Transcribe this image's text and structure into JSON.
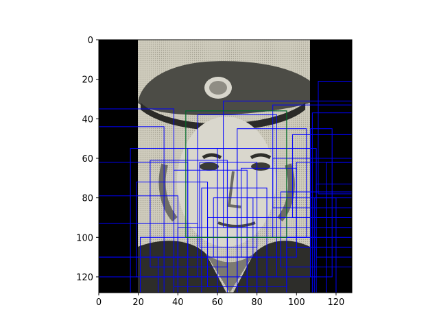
{
  "chart_data": {
    "type": "image_with_bounding_boxes",
    "title": "",
    "xlabel": "",
    "ylabel": "",
    "image_content": "grayscale photo of a man wearing a peaked cap, padded with black bars",
    "xlim": [
      0,
      128
    ],
    "ylim": [
      128,
      0
    ],
    "xticks": [
      0,
      20,
      40,
      60,
      80,
      100,
      120
    ],
    "yticks": [
      0,
      20,
      40,
      60,
      80,
      100,
      120
    ],
    "colors": {
      "box": "#0000ff",
      "highlight_box": "#008000",
      "padding": "#000000"
    },
    "highlight_box": {
      "x1": 44,
      "y1": 36,
      "x2": 95,
      "y2": 100
    },
    "boxes": [
      {
        "x1": 0,
        "y1": 0,
        "x2": 128,
        "y2": 128
      },
      {
        "x1": 0,
        "y1": 35,
        "x2": 38,
        "y2": 128
      },
      {
        "x1": 0,
        "y1": 44,
        "x2": 33,
        "y2": 128
      },
      {
        "x1": 0,
        "y1": 62,
        "x2": 45,
        "y2": 110
      },
      {
        "x1": 0,
        "y1": 79,
        "x2": 40,
        "y2": 128
      },
      {
        "x1": 0,
        "y1": 93,
        "x2": 50,
        "y2": 120
      },
      {
        "x1": 0,
        "y1": 110,
        "x2": 30,
        "y2": 128
      },
      {
        "x1": 16,
        "y1": 55,
        "x2": 60,
        "y2": 128
      },
      {
        "x1": 19,
        "y1": 72,
        "x2": 55,
        "y2": 120
      },
      {
        "x1": 21,
        "y1": 100,
        "x2": 70,
        "y2": 128
      },
      {
        "x1": 26,
        "y1": 61,
        "x2": 65,
        "y2": 115
      },
      {
        "x1": 38,
        "y1": 66,
        "x2": 75,
        "y2": 125
      },
      {
        "x1": 44,
        "y1": 36,
        "x2": 95,
        "y2": 100
      },
      {
        "x1": 45,
        "y1": 55,
        "x2": 70,
        "y2": 128
      },
      {
        "x1": 50,
        "y1": 38,
        "x2": 90,
        "y2": 110
      },
      {
        "x1": 51,
        "y1": 62,
        "x2": 80,
        "y2": 105
      },
      {
        "x1": 52,
        "y1": 75,
        "x2": 85,
        "y2": 128
      },
      {
        "x1": 55,
        "y1": 90,
        "x2": 95,
        "y2": 125
      },
      {
        "x1": 58,
        "y1": 80,
        "x2": 78,
        "y2": 110
      },
      {
        "x1": 60,
        "y1": 55,
        "x2": 110,
        "y2": 120
      },
      {
        "x1": 63,
        "y1": 31,
        "x2": 128,
        "y2": 95
      },
      {
        "x1": 70,
        "y1": 45,
        "x2": 105,
        "y2": 100
      },
      {
        "x1": 72,
        "y1": 65,
        "x2": 100,
        "y2": 110
      },
      {
        "x1": 75,
        "y1": 80,
        "x2": 120,
        "y2": 128
      },
      {
        "x1": 80,
        "y1": 90,
        "x2": 115,
        "y2": 128
      },
      {
        "x1": 88,
        "y1": 33,
        "x2": 128,
        "y2": 85
      },
      {
        "x1": 88,
        "y1": 60,
        "x2": 128,
        "y2": 100
      },
      {
        "x1": 92,
        "y1": 77,
        "x2": 128,
        "y2": 115
      },
      {
        "x1": 95,
        "y1": 105,
        "x2": 128,
        "y2": 128
      },
      {
        "x1": 98,
        "y1": 48,
        "x2": 128,
        "y2": 90
      },
      {
        "x1": 100,
        "y1": 62,
        "x2": 128,
        "y2": 105
      },
      {
        "x1": 107,
        "y1": 45,
        "x2": 118,
        "y2": 120
      },
      {
        "x1": 108,
        "y1": 37,
        "x2": 128,
        "y2": 128
      },
      {
        "x1": 109,
        "y1": 80,
        "x2": 128,
        "y2": 128
      },
      {
        "x1": 110,
        "y1": 73,
        "x2": 128,
        "y2": 110
      },
      {
        "x1": 111,
        "y1": 21,
        "x2": 128,
        "y2": 78
      },
      {
        "x1": 115,
        "y1": 62,
        "x2": 128,
        "y2": 95
      },
      {
        "x1": 30,
        "y1": 110,
        "x2": 80,
        "y2": 128
      },
      {
        "x1": 40,
        "y1": 95,
        "x2": 90,
        "y2": 120
      },
      {
        "x1": 65,
        "y1": 100,
        "x2": 110,
        "y2": 128
      }
    ]
  }
}
